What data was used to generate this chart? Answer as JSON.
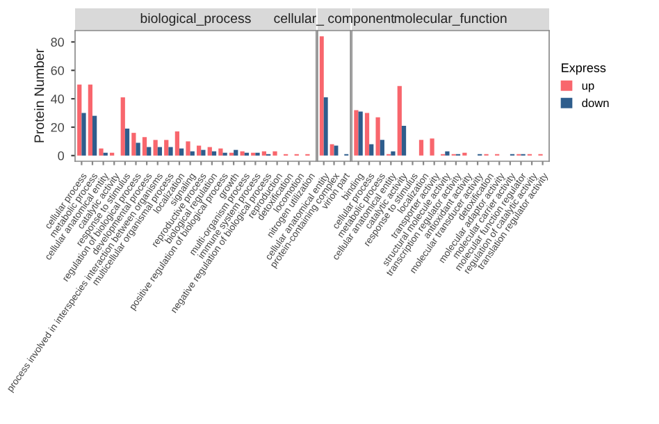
{
  "chart_data": [
    {
      "type": "bar",
      "title": "biological_process",
      "ylabel": "Protein Number",
      "categories": [
        "cellular process",
        "metabolic process",
        "cellular anatomical entity",
        "catalytic activity",
        "response to stimulus",
        "regulation of biological process",
        "developmental process",
        "process involved in interspecies interaction between organisms",
        "multicellular organismal process",
        "localization",
        "signaling",
        "reproductive process",
        "biological regulation",
        "positive regulation of biological process",
        "growth",
        "multi-organism process",
        "immune system process",
        "negative regulation of biological process",
        "reproduction",
        "detoxification",
        "locomotion",
        "nitrogen utilization"
      ],
      "series": [
        {
          "color": "#f8666d",
          "values": [
            50,
            50,
            5,
            2,
            41,
            16,
            13,
            11,
            11,
            17,
            10,
            7,
            6,
            5,
            2,
            3,
            2,
            3,
            3,
            1,
            1,
            1
          ]
        },
        {
          "color": "#2e5d8c",
          "values": [
            30,
            28,
            2,
            0,
            19,
            9,
            6,
            6,
            6,
            5,
            3,
            4,
            3,
            2,
            4,
            2,
            2,
            1,
            0,
            0,
            0,
            0
          ]
        }
      ],
      "ylim": [
        -4,
        88
      ],
      "yticks": [
        0,
        20,
        40,
        60,
        80
      ],
      "grid": false
    },
    {
      "type": "bar",
      "title": "cellular_ component",
      "categories": [
        "cellular anatomical entity",
        "protein-containing complex",
        "virion part"
      ],
      "series": [
        {
          "color": "#f8666d",
          "values": [
            84,
            8,
            0
          ]
        },
        {
          "color": "#2e5d8c",
          "values": [
            41,
            7,
            1
          ]
        }
      ],
      "ylim": [
        -4,
        88
      ],
      "yticks": [
        0,
        20,
        40,
        60,
        80
      ],
      "tick_labels": "x",
      "grid": false
    },
    {
      "type": "bar",
      "title": "molecular_function",
      "legend_title": "Express",
      "legend": "right",
      "categories": [
        "binding",
        "cellular process",
        "metabolic process",
        "cellular anatomical entity",
        "catalytic activity",
        "response to stimulus",
        "localization",
        "transporter activity",
        "structural molecule activity",
        "transcription regulator activity",
        "antioxidant activity",
        "molecular transducer activity",
        "detoxification",
        "molecular adaptor activity",
        "molecular carrier activity",
        "molecular function regulator",
        "regulation of catalytic activity",
        "translation regulator activity"
      ],
      "series": [
        {
          "name": "up",
          "color": "#f8666d",
          "values": [
            32,
            30,
            27,
            1,
            49,
            0,
            11,
            12,
            1,
            1,
            2,
            0,
            1,
            1,
            0,
            1,
            1,
            1
          ]
        },
        {
          "name": "down",
          "color": "#2e5d8c",
          "values": [
            31,
            8,
            11,
            3,
            21,
            0,
            0,
            0,
            3,
            1,
            0,
            1,
            0,
            0,
            1,
            1,
            0,
            0
          ]
        }
      ],
      "ylim": [
        -4,
        88
      ],
      "yticks": [
        0,
        20,
        40,
        60,
        80
      ],
      "tick_labels": "x",
      "grid": false
    }
  ]
}
